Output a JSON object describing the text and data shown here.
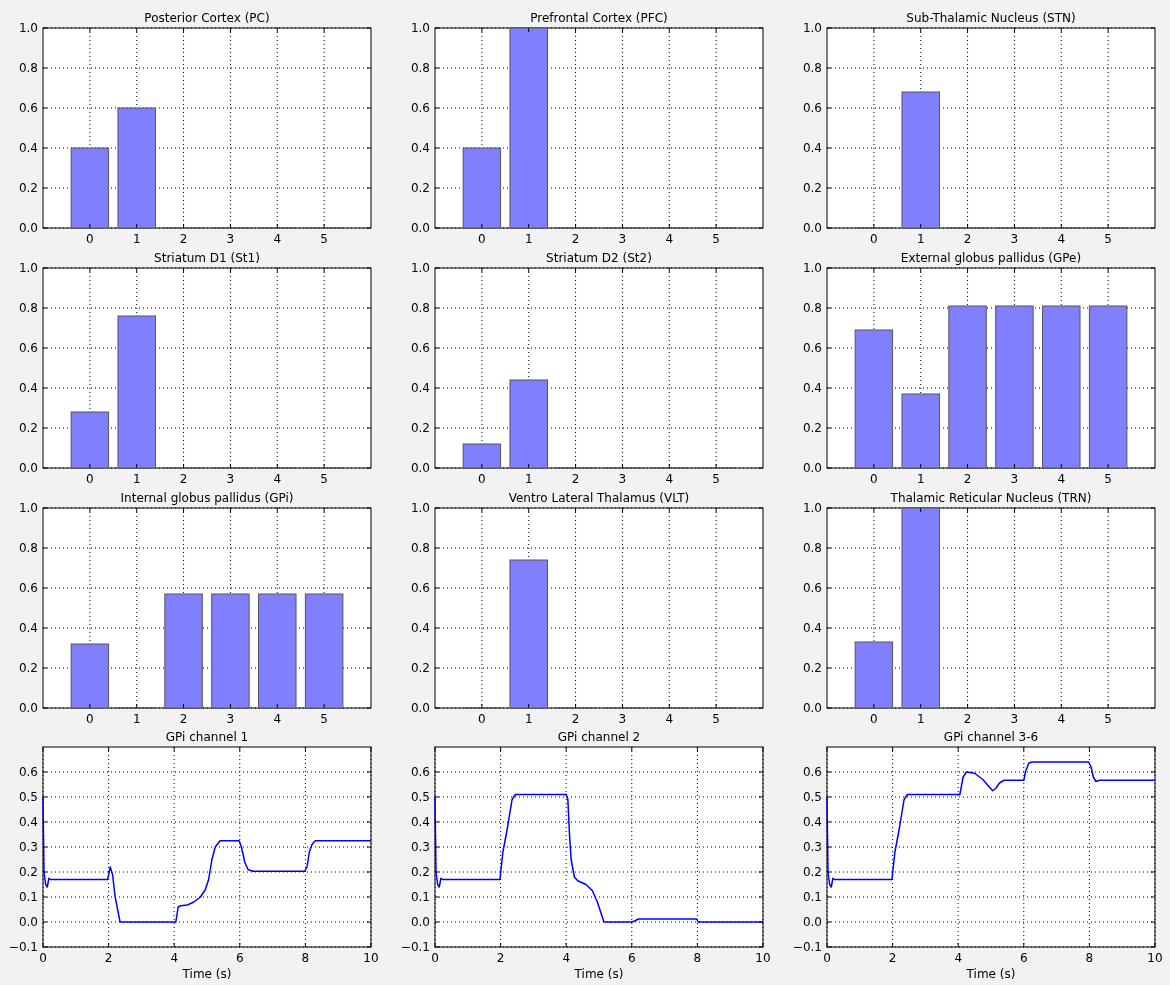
{
  "chart_data": [
    {
      "type": "bar",
      "title": "Posterior Cortex (PC)",
      "categories": [
        "0",
        "1",
        "2",
        "3",
        "4",
        "5"
      ],
      "values": [
        0.4,
        0.6,
        0,
        0,
        0,
        0
      ],
      "color": "#8080ff",
      "ylim": [
        0,
        1
      ],
      "yticks": [
        {
          "value": 0,
          "label": "0.0"
        },
        {
          "value": 0.2,
          "label": "0.2"
        },
        {
          "value": 0.4,
          "label": "0.4"
        },
        {
          "value": 0.6,
          "label": "0.6"
        },
        {
          "value": 0.8,
          "label": "0.8"
        },
        {
          "value": 1,
          "label": "1.0"
        }
      ],
      "grid": true
    },
    {
      "type": "bar",
      "title": "Prefrontal Cortex (PFC)",
      "categories": [
        "0",
        "1",
        "2",
        "3",
        "4",
        "5"
      ],
      "values": [
        0.4,
        1.0,
        0,
        0,
        0,
        0
      ],
      "color": "#8080ff",
      "ylim": [
        0,
        1
      ],
      "yticks": [
        {
          "value": 0,
          "label": "0.0"
        },
        {
          "value": 0.2,
          "label": "0.2"
        },
        {
          "value": 0.4,
          "label": "0.4"
        },
        {
          "value": 0.6,
          "label": "0.6"
        },
        {
          "value": 0.8,
          "label": "0.8"
        },
        {
          "value": 1,
          "label": "1.0"
        }
      ],
      "grid": true
    },
    {
      "type": "bar",
      "title": "Sub-Thalamic Nucleus (STN)",
      "categories": [
        "0",
        "1",
        "2",
        "3",
        "4",
        "5"
      ],
      "values": [
        0,
        0.68,
        0,
        0,
        0,
        0
      ],
      "color": "#8080ff",
      "ylim": [
        0,
        1
      ],
      "yticks": [
        {
          "value": 0,
          "label": "0.0"
        },
        {
          "value": 0.2,
          "label": "0.2"
        },
        {
          "value": 0.4,
          "label": "0.4"
        },
        {
          "value": 0.6,
          "label": "0.6"
        },
        {
          "value": 0.8,
          "label": "0.8"
        },
        {
          "value": 1,
          "label": "1.0"
        }
      ],
      "grid": true
    },
    {
      "type": "bar",
      "title": "Striatum D1 (St1)",
      "categories": [
        "0",
        "1",
        "2",
        "3",
        "4",
        "5"
      ],
      "values": [
        0.28,
        0.76,
        0,
        0,
        0,
        0
      ],
      "color": "#8080ff",
      "ylim": [
        0,
        1
      ],
      "yticks": [
        {
          "value": 0,
          "label": "0.0"
        },
        {
          "value": 0.2,
          "label": "0.2"
        },
        {
          "value": 0.4,
          "label": "0.4"
        },
        {
          "value": 0.6,
          "label": "0.6"
        },
        {
          "value": 0.8,
          "label": "0.8"
        },
        {
          "value": 1,
          "label": "1.0"
        }
      ],
      "grid": true
    },
    {
      "type": "bar",
      "title": "Striatum D2 (St2)",
      "categories": [
        "0",
        "1",
        "2",
        "3",
        "4",
        "5"
      ],
      "values": [
        0.12,
        0.44,
        0,
        0,
        0,
        0
      ],
      "color": "#8080ff",
      "ylim": [
        0,
        1
      ],
      "yticks": [
        {
          "value": 0,
          "label": "0.0"
        },
        {
          "value": 0.2,
          "label": "0.2"
        },
        {
          "value": 0.4,
          "label": "0.4"
        },
        {
          "value": 0.6,
          "label": "0.6"
        },
        {
          "value": 0.8,
          "label": "0.8"
        },
        {
          "value": 1,
          "label": "1.0"
        }
      ],
      "grid": true
    },
    {
      "type": "bar",
      "title": "External globus pallidus (GPe)",
      "categories": [
        "0",
        "1",
        "2",
        "3",
        "4",
        "5"
      ],
      "values": [
        0.69,
        0.37,
        0.81,
        0.81,
        0.81,
        0.81
      ],
      "color": "#8080ff",
      "ylim": [
        0,
        1
      ],
      "yticks": [
        {
          "value": 0,
          "label": "0.0"
        },
        {
          "value": 0.2,
          "label": "0.2"
        },
        {
          "value": 0.4,
          "label": "0.4"
        },
        {
          "value": 0.6,
          "label": "0.6"
        },
        {
          "value": 0.8,
          "label": "0.8"
        },
        {
          "value": 1,
          "label": "1.0"
        }
      ],
      "grid": true
    },
    {
      "type": "bar",
      "title": "Internal globus pallidus (GPi)",
      "categories": [
        "0",
        "1",
        "2",
        "3",
        "4",
        "5"
      ],
      "values": [
        0.32,
        0,
        0.57,
        0.57,
        0.57,
        0.57
      ],
      "color": "#8080ff",
      "ylim": [
        0,
        1
      ],
      "yticks": [
        {
          "value": 0,
          "label": "0.0"
        },
        {
          "value": 0.2,
          "label": "0.2"
        },
        {
          "value": 0.4,
          "label": "0.4"
        },
        {
          "value": 0.6,
          "label": "0.6"
        },
        {
          "value": 0.8,
          "label": "0.8"
        },
        {
          "value": 1,
          "label": "1.0"
        }
      ],
      "grid": true
    },
    {
      "type": "bar",
      "title": "Ventro Lateral Thalamus (VLT)",
      "categories": [
        "0",
        "1",
        "2",
        "3",
        "4",
        "5"
      ],
      "values": [
        0,
        0.74,
        0,
        0,
        0,
        0
      ],
      "color": "#8080ff",
      "ylim": [
        0,
        1
      ],
      "yticks": [
        {
          "value": 0,
          "label": "0.0"
        },
        {
          "value": 0.2,
          "label": "0.2"
        },
        {
          "value": 0.4,
          "label": "0.4"
        },
        {
          "value": 0.6,
          "label": "0.6"
        },
        {
          "value": 0.8,
          "label": "0.8"
        },
        {
          "value": 1,
          "label": "1.0"
        }
      ],
      "grid": true
    },
    {
      "type": "bar",
      "title": "Thalamic Reticular Nucleus (TRN)",
      "categories": [
        "0",
        "1",
        "2",
        "3",
        "4",
        "5"
      ],
      "values": [
        0.33,
        1.0,
        0,
        0,
        0,
        0
      ],
      "color": "#8080ff",
      "ylim": [
        0,
        1
      ],
      "yticks": [
        {
          "value": 0,
          "label": "0.0"
        },
        {
          "value": 0.2,
          "label": "0.2"
        },
        {
          "value": 0.4,
          "label": "0.4"
        },
        {
          "value": 0.6,
          "label": "0.6"
        },
        {
          "value": 0.8,
          "label": "0.8"
        },
        {
          "value": 1,
          "label": "1.0"
        }
      ],
      "grid": true
    },
    {
      "type": "line",
      "title": "GPi channel 1",
      "xlabel": "Time (s)",
      "x": [
        0,
        0.03,
        0.08,
        0.13,
        0.18,
        0.23,
        1.97,
        2.05,
        2.12,
        2.2,
        2.35,
        4.05,
        4.12,
        4.2,
        4.4,
        4.6,
        4.8,
        4.95,
        5.05,
        5.15,
        5.25,
        5.4,
        5.98,
        6.05,
        6.15,
        6.25,
        6.4,
        7.98,
        8.05,
        8.12,
        8.2,
        8.3,
        10
      ],
      "values": [
        0.5,
        0.2,
        0.15,
        0.14,
        0.175,
        0.17,
        0.17,
        0.22,
        0.19,
        0.1,
        0,
        0,
        0.06,
        0.065,
        0.068,
        0.08,
        0.1,
        0.13,
        0.17,
        0.25,
        0.3,
        0.325,
        0.325,
        0.3,
        0.24,
        0.21,
        0.203,
        0.203,
        0.22,
        0.28,
        0.31,
        0.325,
        0.325
      ],
      "color": "#0000ff",
      "xlim": [
        0,
        10
      ],
      "xticks": [
        0,
        2,
        4,
        6,
        8,
        10
      ],
      "ylim": [
        -0.1,
        0.7
      ],
      "yticks": [
        {
          "value": -0.1,
          "label": "−0.1"
        },
        {
          "value": 0,
          "label": "0.0"
        },
        {
          "value": 0.1,
          "label": "0.1"
        },
        {
          "value": 0.2,
          "label": "0.2"
        },
        {
          "value": 0.3,
          "label": "0.3"
        },
        {
          "value": 0.4,
          "label": "0.4"
        },
        {
          "value": 0.5,
          "label": "0.5"
        },
        {
          "value": 0.6,
          "label": "0.6"
        }
      ],
      "grid": true
    },
    {
      "type": "line",
      "title": "GPi channel 2",
      "xlabel": "Time (s)",
      "x": [
        0,
        0.03,
        0.08,
        0.13,
        0.18,
        0.23,
        1.98,
        2.07,
        2.2,
        2.35,
        2.45,
        4.0,
        4.05,
        4.1,
        4.15,
        4.25,
        4.35,
        4.6,
        4.8,
        4.95,
        5.1,
        5.15,
        6.0,
        6.1,
        6.2,
        7.98,
        8.02,
        10
      ],
      "values": [
        0.5,
        0.2,
        0.15,
        0.14,
        0.175,
        0.17,
        0.17,
        0.28,
        0.37,
        0.49,
        0.51,
        0.51,
        0.49,
        0.35,
        0.25,
        0.18,
        0.165,
        0.15,
        0.125,
        0.08,
        0.02,
        0,
        0,
        0.005,
        0.012,
        0.012,
        0,
        0
      ],
      "color": "#0000ff",
      "xlim": [
        0,
        10
      ],
      "xticks": [
        0,
        2,
        4,
        6,
        8,
        10
      ],
      "ylim": [
        -0.1,
        0.7
      ],
      "yticks": [
        {
          "value": -0.1,
          "label": "−0.1"
        },
        {
          "value": 0,
          "label": "0.0"
        },
        {
          "value": 0.1,
          "label": "0.1"
        },
        {
          "value": 0.2,
          "label": "0.2"
        },
        {
          "value": 0.3,
          "label": "0.3"
        },
        {
          "value": 0.4,
          "label": "0.4"
        },
        {
          "value": 0.5,
          "label": "0.5"
        },
        {
          "value": 0.6,
          "label": "0.6"
        }
      ],
      "grid": true
    },
    {
      "type": "line",
      "title": "GPi channel 3-6",
      "xlabel": "Time (s)",
      "x": [
        0,
        0.03,
        0.08,
        0.13,
        0.18,
        0.23,
        1.98,
        2.07,
        2.2,
        2.35,
        2.45,
        4.05,
        4.15,
        4.25,
        4.5,
        4.75,
        4.95,
        5.05,
        5.15,
        5.25,
        5.4,
        6.0,
        6.05,
        6.15,
        6.25,
        7.98,
        8.05,
        8.12,
        8.2,
        8.3,
        10
      ],
      "values": [
        0.5,
        0.2,
        0.15,
        0.14,
        0.175,
        0.17,
        0.17,
        0.28,
        0.37,
        0.49,
        0.51,
        0.51,
        0.58,
        0.6,
        0.595,
        0.57,
        0.54,
        0.525,
        0.535,
        0.555,
        0.567,
        0.567,
        0.6,
        0.635,
        0.64,
        0.64,
        0.62,
        0.58,
        0.562,
        0.567,
        0.567
      ],
      "color": "#0000ff",
      "xlim": [
        0,
        10
      ],
      "xticks": [
        0,
        2,
        4,
        6,
        8,
        10
      ],
      "ylim": [
        -0.1,
        0.7
      ],
      "yticks": [
        {
          "value": -0.1,
          "label": "−0.1"
        },
        {
          "value": 0,
          "label": "0.0"
        },
        {
          "value": 0.1,
          "label": "0.1"
        },
        {
          "value": 0.2,
          "label": "0.2"
        },
        {
          "value": 0.3,
          "label": "0.3"
        },
        {
          "value": 0.4,
          "label": "0.4"
        },
        {
          "value": 0.5,
          "label": "0.5"
        },
        {
          "value": 0.6,
          "label": "0.6"
        }
      ],
      "grid": true
    }
  ]
}
